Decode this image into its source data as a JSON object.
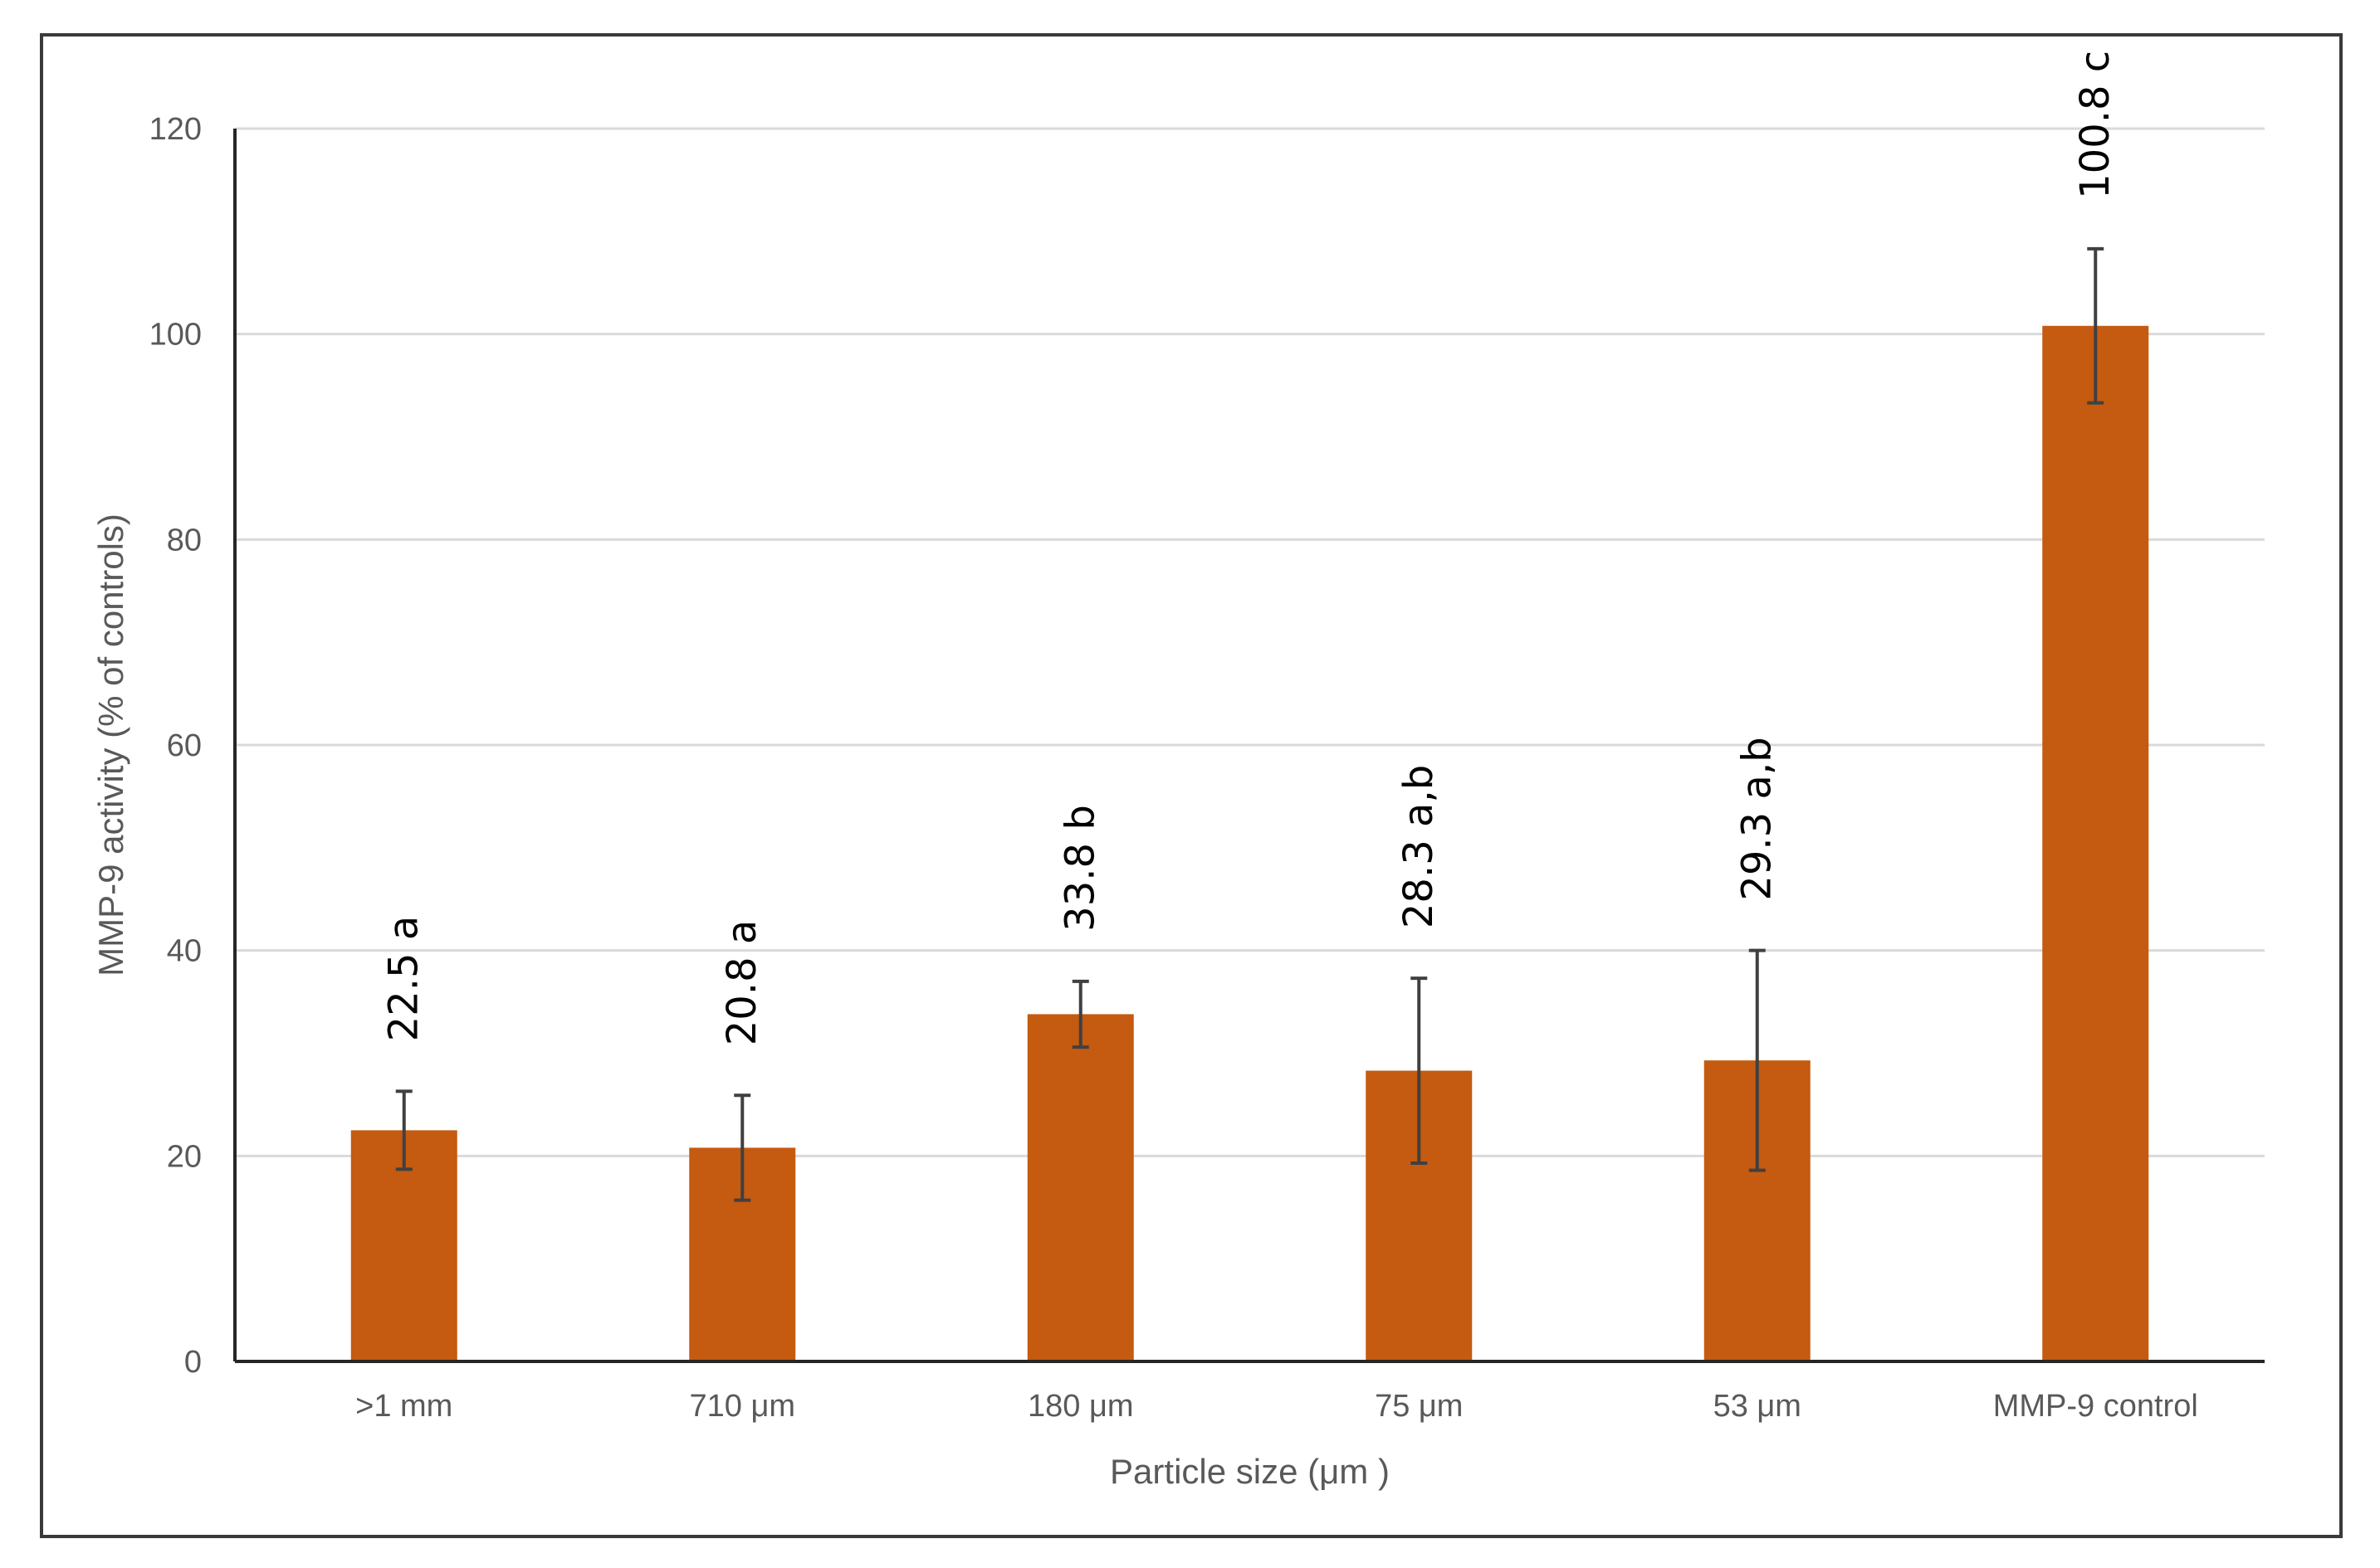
{
  "chart_data": {
    "type": "bar",
    "categories": [
      ">1 mm",
      "710 μm",
      "180 μm",
      "75 μm",
      "53 μm",
      "MMP-9 control"
    ],
    "series": [
      {
        "values": [
          22.5,
          20.8,
          33.8,
          28.3,
          29.3,
          100.8
        ],
        "error": [
          3.8,
          5.1,
          3.2,
          9.0,
          10.7,
          7.5
        ],
        "labels": [
          "22.5 a",
          "20.8 a",
          "33.8 b",
          "28.3 a,b",
          "29.3 a,b",
          "100.8 c"
        ]
      }
    ],
    "xlabel": "Particle size (μm )",
    "ylabel": "MMP-9 activity (% of controls)",
    "ylim": [
      0,
      120
    ],
    "yticks": [
      "0",
      "20",
      "40",
      "60",
      "80",
      "100",
      "120"
    ],
    "grid": true,
    "bar_color": "#C55A11",
    "error_bar_color": "#404040"
  }
}
